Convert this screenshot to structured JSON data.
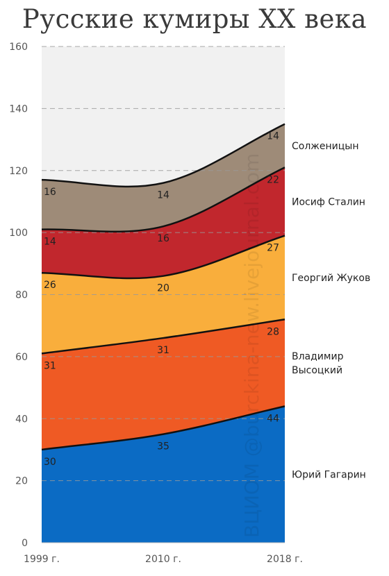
{
  "chart_data": {
    "type": "area",
    "title": "Русские кумиры XX века",
    "stacked": true,
    "x": [
      "1999 г.",
      "2010 г.",
      "2018 г."
    ],
    "ylim": [
      0,
      160
    ],
    "yticks": [
      0,
      20,
      40,
      60,
      80,
      100,
      120,
      140,
      160
    ],
    "grid": true,
    "legend_placement": "right",
    "series": [
      {
        "name": "Юрий Гагарин",
        "values": [
          30,
          35,
          44
        ],
        "color": "#0b6bc4"
      },
      {
        "name": "Владимир Высоцкий",
        "values": [
          31,
          31,
          28
        ],
        "color": "#ef5a24"
      },
      {
        "name": "Георгий Жуков",
        "values": [
          26,
          20,
          27
        ],
        "color": "#f9ae3c"
      },
      {
        "name": "Иосиф Сталин",
        "values": [
          14,
          16,
          22
        ],
        "color": "#c1272d"
      },
      {
        "name": "Солженицын",
        "values": [
          16,
          14,
          14
        ],
        "color": "#9e8b78"
      }
    ],
    "series_label_lines": [
      [
        "Юрий Гагарин"
      ],
      [
        "Владимир",
        "Высоцкий"
      ],
      [
        "Георгий Жуков"
      ],
      [
        "Иосиф Сталин"
      ],
      [
        "Солженицын"
      ]
    ],
    "plot_background": "#f1f1f1"
  },
  "watermark": "ВЦИОМ @burckina-new.livejournal.com"
}
